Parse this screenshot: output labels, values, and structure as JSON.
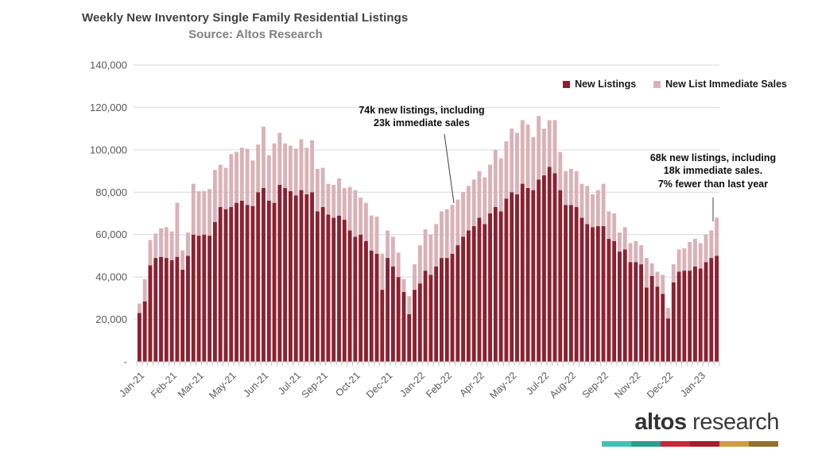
{
  "title": "Weekly New Inventory Single Family Residential Listings",
  "subtitle": "Source: Altos Research",
  "legend": [
    {
      "label": "New Listings",
      "color": "#8B2130"
    },
    {
      "label": "New List Immediate Sales",
      "color": "#D9B2B8"
    }
  ],
  "annotations": [
    {
      "text": "74k new listings, including\n23k immediate sales"
    },
    {
      "text": "68k new listings, including\n18k immediate sales.\n7% fewer than last year"
    }
  ],
  "footer_logo": {
    "bold": "altos",
    "light": "research",
    "bar_colors": [
      "#41C1B4",
      "#2E9C8F",
      "#C62A39",
      "#A11E2C",
      "#D09B44",
      "#92702F"
    ]
  },
  "colors": {
    "new_listings": "#8B2130",
    "immediate_sales": "#D9B2B8",
    "gridline": "#D9D9D9",
    "axis_text": "#595959",
    "axis_line": "#BFBFBF",
    "leader_line": "#404040"
  },
  "chart_data": {
    "type": "bar",
    "stacked": true,
    "title": "Weekly New Inventory Single Family Residential Listings",
    "subtitle": "Source: Altos Research",
    "values_unit": "thousands of listings per week",
    "ylim_thousands": [
      0,
      140
    ],
    "y_tick_labels": [
      "140,000",
      "120,000",
      "100,000",
      "80,000",
      "60,000",
      "40,000",
      "20,000",
      "-"
    ],
    "x_ticks": [
      {
        "label": "Jan-21",
        "bar_index": 1
      },
      {
        "label": "Feb-21",
        "bar_index": 7
      },
      {
        "label": "Mar-21",
        "bar_index": 12
      },
      {
        "label": "May-21",
        "bar_index": 18
      },
      {
        "label": "Jun-21",
        "bar_index": 24
      },
      {
        "label": "Jul-21",
        "bar_index": 30
      },
      {
        "label": "Sep-21",
        "bar_index": 35
      },
      {
        "label": "Oct-21",
        "bar_index": 41
      },
      {
        "label": "Dec-21",
        "bar_index": 47
      },
      {
        "label": "Jan-22",
        "bar_index": 53
      },
      {
        "label": "Feb-22",
        "bar_index": 58
      },
      {
        "label": "Apr-22",
        "bar_index": 64
      },
      {
        "label": "May-22",
        "bar_index": 70
      },
      {
        "label": "Jul-22",
        "bar_index": 76
      },
      {
        "label": "Aug-22",
        "bar_index": 81
      },
      {
        "label": "Sep-22",
        "bar_index": 87
      },
      {
        "label": "Nov-22",
        "bar_index": 93
      },
      {
        "label": "Dec-22",
        "bar_index": 99
      },
      {
        "label": "Jan-23",
        "bar_index": 105
      }
    ],
    "series": [
      {
        "name": "New Listings",
        "values_thousands": [
          23,
          28.5,
          45.5,
          49,
          49.5,
          49,
          48,
          49.5,
          43.5,
          50,
          60,
          59.5,
          60,
          59.5,
          66,
          73,
          72,
          73,
          75,
          76,
          74,
          73.5,
          80,
          82,
          76,
          75,
          83.5,
          82,
          80.5,
          78.5,
          81,
          79,
          80,
          71,
          73,
          69.5,
          68,
          69,
          67,
          62,
          59,
          60,
          57,
          52.5,
          51,
          34,
          49,
          45,
          40,
          33,
          22.5,
          34,
          37,
          43,
          41,
          45,
          49,
          49,
          51,
          55,
          59,
          62,
          64,
          68,
          65,
          70,
          73,
          71,
          77,
          80,
          79,
          84,
          82,
          81,
          86,
          88,
          92,
          89,
          81,
          74,
          74,
          73,
          68,
          65,
          63.5,
          64,
          64,
          58,
          57,
          52,
          53,
          47,
          47,
          46,
          35,
          40.5,
          35.5,
          32,
          20.5,
          37.5,
          42.5,
          43,
          43,
          45,
          44,
          47,
          49,
          50
        ]
      },
      {
        "name": "New List Immediate Sales",
        "values_thousands": [
          4.5,
          10.5,
          12,
          11.5,
          13.5,
          14.5,
          13.5,
          25.5,
          9,
          11,
          24,
          21,
          20.5,
          22,
          24.5,
          20,
          19.5,
          25,
          24,
          25,
          26.5,
          21.5,
          22.5,
          29,
          21.5,
          28,
          24.5,
          21,
          21.5,
          22,
          24,
          22,
          24.5,
          20,
          18.5,
          14.5,
          15.5,
          17.5,
          15,
          20.5,
          22,
          17.5,
          18,
          16.5,
          17.5,
          17,
          13,
          14,
          11.5,
          6,
          8.5,
          12,
          18,
          19.5,
          19,
          20,
          22,
          23,
          23,
          21.5,
          21,
          21,
          22,
          22,
          22,
          23,
          27,
          25,
          27,
          30,
          29,
          30,
          30,
          25,
          30,
          22,
          22,
          25,
          18,
          16,
          17,
          17,
          16,
          18,
          15.5,
          17,
          20,
          13,
          13,
          9,
          10.5,
          9,
          10,
          9,
          14,
          6,
          7,
          9,
          5,
          8.5,
          10.5,
          10.5,
          13.5,
          13,
          12,
          13,
          13,
          18
        ]
      }
    ],
    "annotated_points": [
      {
        "text": "74k new listings, including 23k immediate sales",
        "bar_index": 58
      },
      {
        "text": "68k new listings, including 18k immediate sales. 7% fewer than last year",
        "bar_index": 107
      }
    ],
    "legend_position": "top-right",
    "grid": "horizontal-only"
  }
}
